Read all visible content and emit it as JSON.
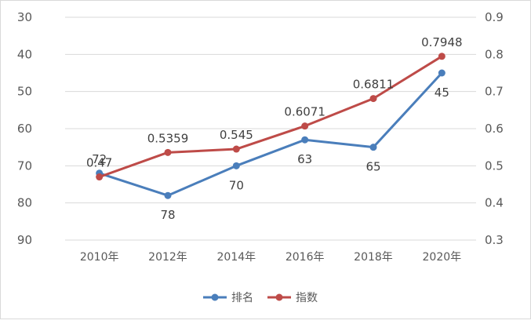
{
  "chart_data": {
    "type": "line",
    "categories": [
      "2010年",
      "2012年",
      "2014年",
      "2016年",
      "2018年",
      "2020年"
    ],
    "series": [
      {
        "name": "排名",
        "axis": "left",
        "color": "#4a7ebb",
        "values": [
          72,
          78,
          70,
          63,
          65,
          45
        ],
        "labels": [
          "72",
          "78",
          "70",
          "63",
          "65",
          "45"
        ]
      },
      {
        "name": "指数",
        "axis": "right",
        "color": "#be4b48",
        "values": [
          0.47,
          0.5359,
          0.545,
          0.6071,
          0.6811,
          0.7948
        ],
        "labels": [
          "0.47",
          "0.5359",
          "0.545",
          "0.6071",
          "0.6811",
          "0.7948"
        ]
      }
    ],
    "y_left": {
      "min": 30,
      "max": 90,
      "reversed": true,
      "ticks": [
        "30",
        "40",
        "50",
        "60",
        "70",
        "80",
        "90"
      ]
    },
    "y_right": {
      "min": 0.3,
      "max": 0.9,
      "reversed": false,
      "ticks": [
        "0.9",
        "0.8",
        "0.7",
        "0.6",
        "0.5",
        "0.4",
        "0.3"
      ]
    },
    "grid": "horizontal",
    "legend_position": "bottom"
  }
}
